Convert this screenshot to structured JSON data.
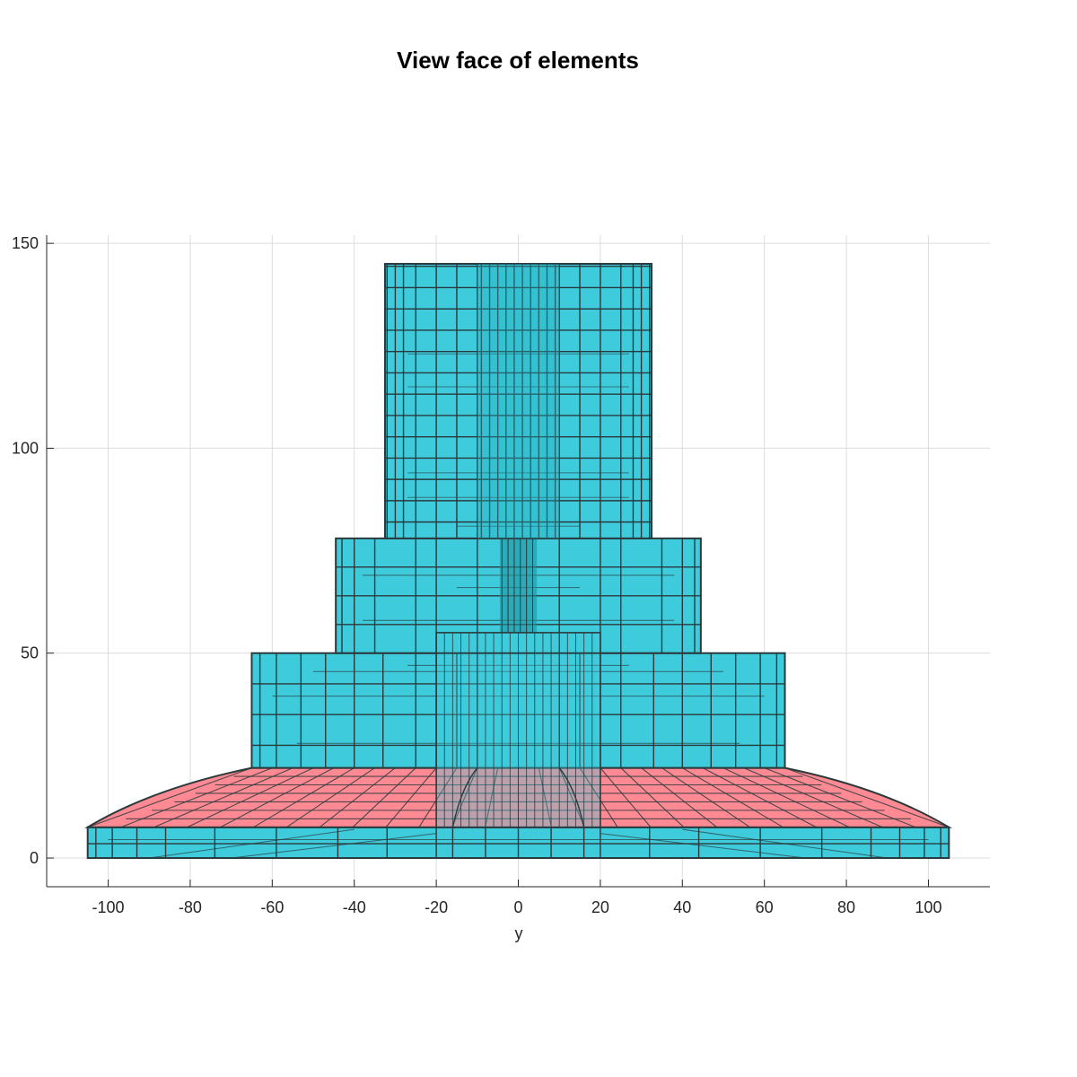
{
  "chart_data": {
    "type": "mesh",
    "title": "View face of elements",
    "xlabel": "y",
    "ylabel": "",
    "xlim": [
      -115,
      115
    ],
    "ylim": [
      -7,
      152
    ],
    "xticks": [
      -100,
      -80,
      -60,
      -40,
      -20,
      0,
      20,
      40,
      60,
      80,
      100
    ],
    "yticks": [
      0,
      50,
      100,
      150
    ],
    "grid": true,
    "colors": {
      "face": "#3ecbdc",
      "highlight_face": "#ff8a93",
      "edge": "#2b3a3c"
    },
    "parts": [
      {
        "name": "base slab",
        "face": "face",
        "y": [
          -105,
          105
        ],
        "z": [
          0,
          7.5
        ]
      },
      {
        "name": "sloped top of base",
        "face": "highlight_face",
        "y_bottom": [
          -105,
          105
        ],
        "y_top": [
          -65,
          65
        ],
        "z": [
          7.5,
          22
        ]
      },
      {
        "name": "lower tier",
        "face": "face",
        "y": [
          -65,
          65
        ],
        "z": [
          22,
          50
        ]
      },
      {
        "name": "middle tier",
        "face": "face",
        "y": [
          -44.5,
          44.5
        ],
        "z": [
          50,
          78
        ]
      },
      {
        "name": "top column",
        "face": "face",
        "y": [
          -32.5,
          32.5
        ],
        "z": [
          78,
          145
        ]
      },
      {
        "name": "inner core",
        "face": "face",
        "y": [
          -20,
          20
        ],
        "z": [
          7.5,
          55
        ]
      }
    ]
  }
}
